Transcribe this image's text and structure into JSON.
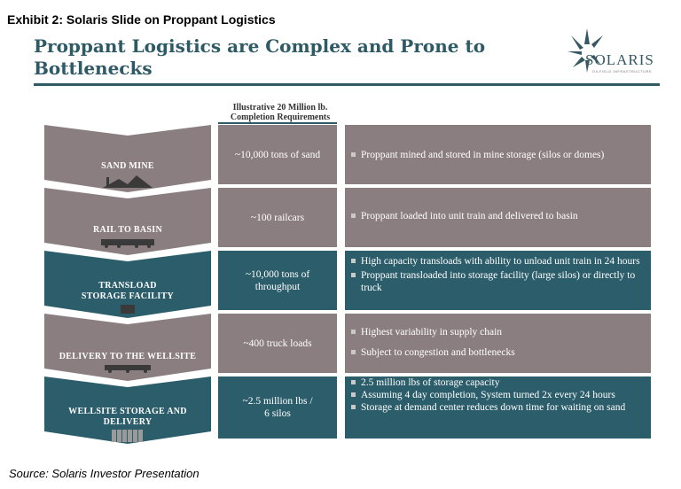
{
  "exhibit": "Exhibit 2:  Solaris Slide on Proppant Logistics",
  "title": "Proppant Logistics are Complex and Prone to Bottlenecks",
  "logo": {
    "text": "SOLARIS",
    "sub": "OILFIELD INFRASTRUCTURE"
  },
  "column_header": {
    "line1": "Illustrative 20 Million lb.",
    "line2": "Completion Requirements"
  },
  "colors": {
    "gray": "#8b7e80",
    "teal": "#2c5d6b",
    "title": "#2e5a66"
  },
  "rows": [
    {
      "stage": "SAND MINE",
      "requirement": [
        "~10,000 tons of sand"
      ],
      "bullets": [
        "Proppant mined and stored in mine storage (silos or domes)"
      ],
      "icon": "mine-icon",
      "color": "gray"
    },
    {
      "stage": "RAIL TO BASIN",
      "requirement": [
        "~100 railcars"
      ],
      "bullets": [
        "Proppant loaded into unit train and delivered to basin"
      ],
      "icon": "train-icon",
      "color": "gray"
    },
    {
      "stage": "TRANSLOAD STORAGE FACILITY",
      "stage_lines": [
        "TRANSLOAD",
        "STORAGE FACILITY"
      ],
      "requirement": [
        "~10,000 tons of",
        "throughput"
      ],
      "bullets": [
        "High capacity transloads with ability to unload unit train in 24 hours",
        "Proppant transloaded into storage facility (large silos) or directly to truck"
      ],
      "icon": "transload-icon",
      "color": "teal"
    },
    {
      "stage": "DELIVERY TO THE WELLSITE",
      "requirement": [
        "~400 truck loads"
      ],
      "bullets": [
        "Highest variability in supply chain",
        "Subject to congestion and bottlenecks"
      ],
      "icon": "truck-icon",
      "color": "gray"
    },
    {
      "stage": "WELLSITE STORAGE AND DELIVERY",
      "stage_lines": [
        "WELLSITE STORAGE AND",
        "DELIVERY"
      ],
      "requirement": [
        "~2.5 million lbs /",
        "6 silos"
      ],
      "bullets": [
        "2.5 million lbs of storage capacity",
        "Assuming 4 day completion, System turned 2x every 24 hours",
        "Storage at demand center reduces down time for waiting on sand"
      ],
      "icon": "silos-icon",
      "color": "teal"
    }
  ],
  "source": "Source: Solaris Investor Presentation"
}
